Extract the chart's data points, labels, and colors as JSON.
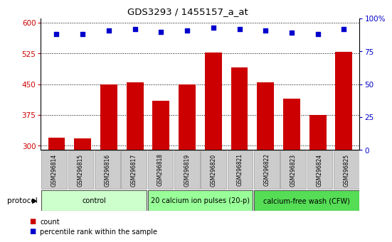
{
  "title": "GDS3293 / 1455157_a_at",
  "samples": [
    "GSM296814",
    "GSM296815",
    "GSM296816",
    "GSM296817",
    "GSM296818",
    "GSM296819",
    "GSM296820",
    "GSM296821",
    "GSM296822",
    "GSM296823",
    "GSM296824",
    "GSM296825"
  ],
  "counts": [
    320,
    318,
    450,
    455,
    410,
    450,
    527,
    490,
    455,
    415,
    375,
    528
  ],
  "percentile_ranks": [
    88,
    88,
    91,
    92,
    90,
    91,
    93,
    92,
    91,
    89,
    88,
    92
  ],
  "ylim_left": [
    290,
    610
  ],
  "ylim_right": [
    0,
    100
  ],
  "yticks_left": [
    300,
    375,
    450,
    525,
    600
  ],
  "yticks_right": [
    0,
    25,
    50,
    75,
    100
  ],
  "bar_color": "#cc0000",
  "dot_color": "#0000cc",
  "bg_color": "#ffffff",
  "tick_box_color": "#cccccc",
  "protocol_groups": [
    {
      "label": "control",
      "start": 0,
      "end": 3,
      "color": "#ccffcc"
    },
    {
      "label": "20 calcium ion pulses (20-p)",
      "start": 4,
      "end": 7,
      "color": "#99ff99"
    },
    {
      "label": "calcium-free wash (CFW)",
      "start": 8,
      "end": 11,
      "color": "#55dd55"
    }
  ],
  "legend_count_label": "count",
  "legend_pct_label": "percentile rank within the sample",
  "protocol_label": "protocol"
}
